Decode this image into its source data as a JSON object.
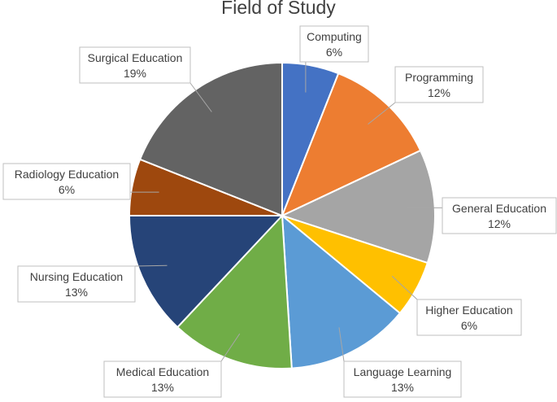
{
  "chart_data": {
    "type": "pie",
    "title": "Field of Study",
    "categories": [
      "Computing",
      "Programming",
      "General Education",
      "Higher Education",
      "Language Learning",
      "Medical Education",
      "Nursing Education",
      "Radiology Education",
      "Surgical Education"
    ],
    "values": [
      6,
      12,
      12,
      6,
      13,
      13,
      13,
      6,
      19
    ],
    "value_labels": [
      "6%",
      "12%",
      "12%",
      "6%",
      "13%",
      "13%",
      "13%",
      "6%",
      "19%"
    ],
    "colors": [
      "#4472C4",
      "#ED7D31",
      "#A5A5A5",
      "#FFC000",
      "#5B9BD5",
      "#70AD47",
      "#264478",
      "#9E480E",
      "#636363"
    ],
    "start_angle_deg": 0,
    "direction": "clockwise",
    "legend": "none",
    "data_labels": "callouts"
  }
}
